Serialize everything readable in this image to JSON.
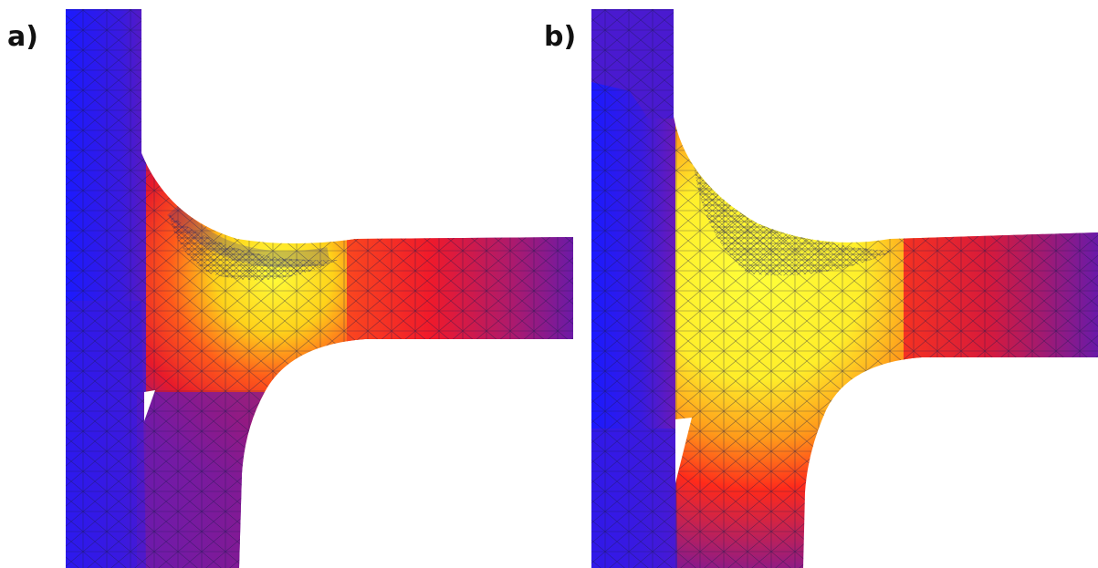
{
  "panels": [
    {
      "label": "a)"
    },
    {
      "label": "b)"
    }
  ],
  "colors": {
    "cold": "#1a1aff",
    "purple": "#7a1a9c",
    "red": "#ff1a1a",
    "orange": "#ff8a1a",
    "hot": "#ffff3a",
    "mesh": "#1a1a4a"
  }
}
